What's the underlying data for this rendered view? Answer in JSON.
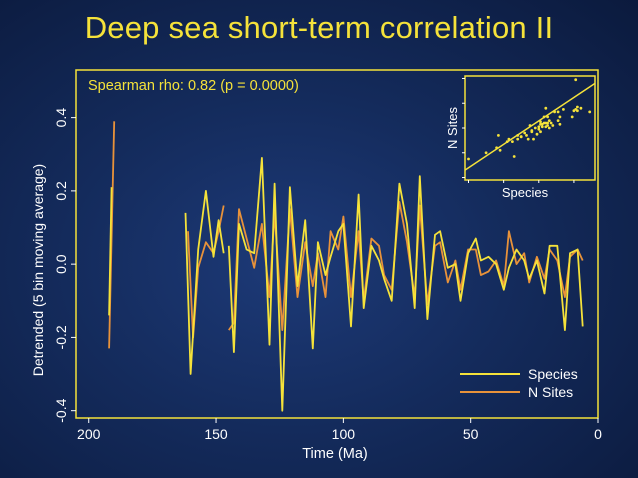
{
  "title": "Deep sea short-term correlation II",
  "chart_data": {
    "type": "line",
    "xlabel": "Time (Ma)",
    "ylabel": "Detrended (5 bin moving average)",
    "xlim": [
      205,
      0
    ],
    "ylim": [
      -0.42,
      0.53
    ],
    "xticks": [
      200,
      150,
      100,
      50,
      0
    ],
    "yticks": [
      -0.4,
      -0.2,
      0.0,
      0.2,
      0.4
    ],
    "annotation": "Spearman rho: 0.82 (p = 0.0000)",
    "legend_placement": "bottom-right",
    "colors": {
      "species": "#f5e23a",
      "n_sites": "#e8923a",
      "frame": "#f5e23a"
    },
    "series": [
      {
        "name": "Species",
        "segments": [
          {
            "x": [
              192,
              191
            ],
            "y": [
              -0.14,
              0.21
            ]
          },
          {
            "x": [
              162,
              160,
              157,
              154,
              151,
              149,
              147
            ],
            "y": [
              0.14,
              -0.3,
              0.04,
              0.2,
              0.02,
              0.12,
              0.03
            ]
          },
          {
            "x": [
              145,
              143,
              141,
              138,
              135,
              132,
              129,
              127,
              124,
              121,
              118,
              115,
              112,
              110,
              107,
              105,
              102,
              100,
              97,
              94,
              92,
              89,
              86,
              84,
              81,
              78,
              75,
              72,
              70,
              67,
              64,
              62,
              59,
              56,
              54,
              51,
              48,
              46,
              43,
              40,
              37,
              35,
              32,
              29,
              27,
              24,
              21,
              19,
              16,
              13,
              11,
              8,
              6
            ],
            "y": [
              0.05,
              -0.24,
              0.11,
              0.04,
              0.03,
              0.29,
              -0.22,
              0.22,
              -0.4,
              0.21,
              -0.06,
              0.12,
              -0.23,
              0.06,
              -0.03,
              0.02,
              0.09,
              0.11,
              -0.17,
              0.19,
              -0.12,
              0.05,
              0.01,
              -0.04,
              -0.1,
              0.22,
              0.11,
              -0.12,
              0.24,
              -0.15,
              0.08,
              0.09,
              -0.01,
              0.0,
              -0.1,
              0.03,
              0.07,
              0.01,
              0.02,
              0.0,
              -0.07,
              -0.01,
              0.04,
              0.01,
              -0.04,
              0.01,
              -0.08,
              0.05,
              0.05,
              -0.18,
              0.03,
              0.04,
              -0.17
            ]
          }
        ]
      },
      {
        "name": "N Sites",
        "segments": [
          {
            "x": [
              192,
              190
            ],
            "y": [
              -0.23,
              0.39
            ]
          },
          {
            "x": [
              161,
              159,
              157,
              154,
              151,
              149,
              147
            ],
            "y": [
              0.09,
              -0.2,
              -0.01,
              0.06,
              0.03,
              0.09,
              0.16
            ]
          },
          {
            "x": [
              145,
              143,
              141,
              138,
              135,
              132,
              129,
              127,
              124,
              121,
              118,
              115,
              112,
              110,
              107,
              105,
              102,
              100,
              97,
              94,
              92,
              89,
              86,
              84,
              81,
              78,
              75,
              72,
              70,
              67,
              64,
              62,
              59,
              56,
              54,
              51,
              48,
              46,
              43,
              40,
              37,
              35,
              32,
              29,
              27,
              24,
              21,
              19,
              16,
              13,
              11,
              8,
              6
            ],
            "y": [
              -0.18,
              -0.16,
              0.15,
              0.07,
              -0.01,
              0.11,
              -0.09,
              0.14,
              -0.18,
              0.15,
              -0.09,
              0.06,
              -0.06,
              0.03,
              -0.09,
              0.09,
              0.04,
              0.13,
              -0.09,
              0.09,
              -0.1,
              0.07,
              0.05,
              -0.03,
              -0.07,
              0.17,
              0.06,
              -0.09,
              0.16,
              -0.11,
              0.05,
              0.06,
              -0.05,
              0.01,
              -0.07,
              0.04,
              0.04,
              -0.03,
              -0.02,
              0.01,
              -0.06,
              0.09,
              0.0,
              0.03,
              -0.05,
              0.02,
              -0.04,
              0.04,
              0.01,
              -0.09,
              0.02,
              0.04,
              0.01
            ]
          }
        ]
      }
    ],
    "inset": {
      "type": "scatter",
      "xlabel": "Species",
      "ylabel": "N Sites",
      "xlim": [
        -0.42,
        0.32
      ],
      "ylim": [
        -0.42,
        0.42
      ],
      "points": [
        [
          -0.4,
          -0.25
        ],
        [
          -0.3,
          -0.2
        ],
        [
          -0.24,
          -0.16
        ],
        [
          -0.23,
          -0.06
        ],
        [
          -0.22,
          -0.18
        ],
        [
          -0.18,
          -0.11
        ],
        [
          -0.17,
          -0.09
        ],
        [
          -0.15,
          -0.11
        ],
        [
          -0.14,
          -0.23
        ],
        [
          -0.12,
          -0.09
        ],
        [
          -0.12,
          -0.06
        ],
        [
          -0.1,
          -0.07
        ],
        [
          -0.1,
          -0.07
        ],
        [
          -0.08,
          -0.04
        ],
        [
          -0.07,
          -0.06
        ],
        [
          -0.06,
          -0.09
        ],
        [
          -0.04,
          -0.02
        ],
        [
          -0.04,
          -0.03
        ],
        [
          -0.03,
          -0.09
        ],
        [
          -0.01,
          -0.05
        ],
        [
          0.0,
          0.01
        ],
        [
          0.01,
          0.05
        ],
        [
          0.01,
          -0.03
        ],
        [
          0.01,
          0.03
        ],
        [
          0.02,
          0.01
        ],
        [
          0.02,
          0.03
        ],
        [
          0.03,
          0.04
        ],
        [
          0.03,
          0.09
        ],
        [
          0.04,
          0.01
        ],
        [
          0.04,
          0.04
        ],
        [
          0.04,
          0.16
        ],
        [
          0.05,
          0.04
        ],
        [
          0.05,
          0.02
        ],
        [
          0.05,
          0.09
        ],
        [
          0.06,
          0.0
        ],
        [
          0.07,
          0.04
        ],
        [
          0.08,
          0.02
        ],
        [
          0.09,
          0.13
        ],
        [
          0.11,
          0.06
        ],
        [
          0.11,
          0.13
        ],
        [
          0.12,
          0.03
        ],
        [
          0.12,
          0.09
        ],
        [
          0.14,
          0.15
        ],
        [
          0.19,
          0.09
        ],
        [
          0.2,
          0.14
        ],
        [
          0.21,
          0.15
        ],
        [
          0.21,
          0.39
        ],
        [
          0.22,
          0.17
        ],
        [
          0.22,
          0.14
        ],
        [
          0.24,
          0.16
        ],
        [
          0.29,
          0.13
        ],
        [
          -0.05,
          0.02
        ],
        [
          0.0,
          -0.01
        ],
        [
          0.06,
          0.06
        ],
        [
          -0.02,
          0.0
        ]
      ],
      "fit_line": {
        "x": [
          -0.42,
          0.32
        ],
        "y": [
          -0.34,
          0.36
        ]
      }
    }
  }
}
